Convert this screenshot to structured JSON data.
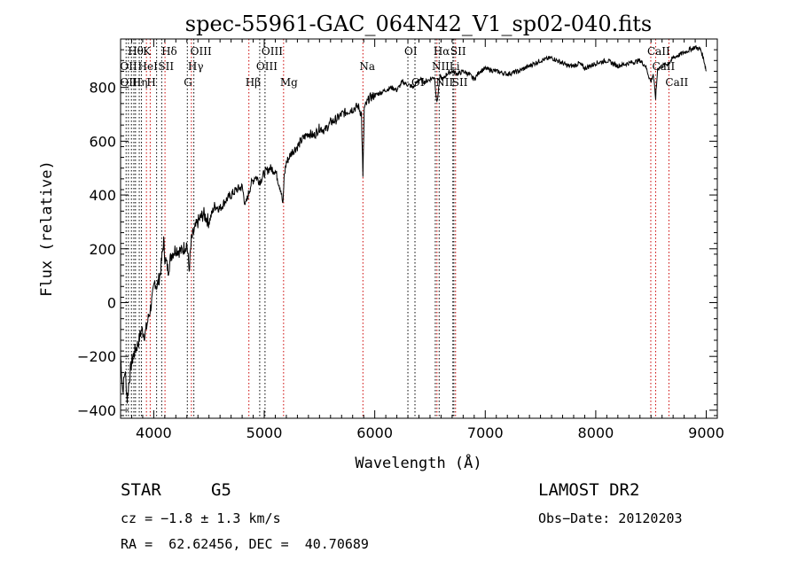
{
  "chart_data": {
    "type": "line",
    "title": "spec-55961-GAC_064N42_V1_sp02-040.fits",
    "xlabel": "Wavelength (Å)",
    "ylabel": "Flux (relative)",
    "xlim": [
      3700,
      9100
    ],
    "ylim": [
      -430,
      980
    ],
    "x_ticks": [
      4000,
      5000,
      6000,
      7000,
      8000,
      9000
    ],
    "x_tick_labels": [
      "4000",
      "5000",
      "6000",
      "7000",
      "8000",
      "9000"
    ],
    "y_ticks": [
      -400,
      -200,
      0,
      200,
      400,
      600,
      800
    ],
    "y_tick_labels": [
      "−400",
      "−200",
      "0",
      "200",
      "400",
      "600",
      "800"
    ],
    "grid": false,
    "series": [
      {
        "line_color": "#000000",
        "x": [
          3700,
          3720,
          3740,
          3760,
          3780,
          3800,
          3830,
          3860,
          3890,
          3920,
          3950,
          3970,
          3990,
          4010,
          4030,
          4060,
          4090,
          4100,
          4130,
          4160,
          4200,
          4250,
          4300,
          4320,
          4340,
          4360,
          4400,
          4450,
          4500,
          4550,
          4600,
          4650,
          4700,
          4750,
          4800,
          4830,
          4861,
          4880,
          4920,
          4960,
          5000,
          5050,
          5100,
          5150,
          5170,
          5180,
          5200,
          5250,
          5300,
          5350,
          5400,
          5450,
          5500,
          5550,
          5600,
          5650,
          5700,
          5750,
          5800,
          5850,
          5880,
          5893,
          5905,
          5950,
          6000,
          6050,
          6100,
          6150,
          6200,
          6250,
          6300,
          6350,
          6400,
          6450,
          6500,
          6540,
          6563,
          6590,
          6620,
          6650,
          6700,
          6750,
          6800,
          6850,
          6900,
          6950,
          7000,
          7100,
          7200,
          7300,
          7400,
          7500,
          7600,
          7650,
          7700,
          7750,
          7800,
          7850,
          7900,
          7950,
          8000,
          8100,
          8200,
          8300,
          8400,
          8450,
          8498,
          8520,
          8542,
          8560,
          8600,
          8662,
          8700,
          8750,
          8800,
          8850,
          8900,
          8950,
          8980,
          8990,
          9000
        ],
        "y": [
          -200,
          -330,
          -250,
          -360,
          -280,
          -220,
          -180,
          -150,
          -100,
          -120,
          -60,
          -20,
          20,
          80,
          60,
          110,
          230,
          170,
          120,
          180,
          200,
          190,
          220,
          120,
          230,
          260,
          300,
          330,
          300,
          360,
          350,
          380,
          400,
          420,
          430,
          360,
          410,
          440,
          470,
          450,
          480,
          500,
          490,
          420,
          360,
          470,
          520,
          560,
          580,
          610,
          630,
          620,
          650,
          640,
          670,
          680,
          700,
          710,
          720,
          730,
          700,
          460,
          720,
          760,
          770,
          780,
          790,
          800,
          790,
          820,
          810,
          800,
          830,
          820,
          830,
          840,
          740,
          840,
          830,
          850,
          860,
          850,
          860,
          850,
          830,
          860,
          870,
          860,
          850,
          860,
          880,
          900,
          910,
          900,
          890,
          880,
          880,
          890,
          870,
          880,
          890,
          900,
          880,
          890,
          900,
          880,
          820,
          850,
          760,
          870,
          880,
          890,
          910,
          920,
          930,
          940,
          950,
          940,
          900,
          880,
          860
        ]
      }
    ],
    "lines": [
      {
        "x": 3750,
        "color": "#000000"
      },
      {
        "x": 3771,
        "color": "#000000"
      },
      {
        "x": 3798,
        "color": "#000000"
      },
      {
        "x": 3820,
        "color": "#000000"
      },
      {
        "x": 3835,
        "color": "#000000"
      },
      {
        "x": 3869,
        "color": "#000000"
      },
      {
        "x": 3889,
        "color": "#000000"
      },
      {
        "x": 3934,
        "color": "#cc0000"
      },
      {
        "x": 3968,
        "color": "#cc0000"
      },
      {
        "x": 4026,
        "color": "#000000"
      },
      {
        "x": 4072,
        "color": "#000000"
      },
      {
        "x": 4102,
        "color": "#cc0000"
      },
      {
        "x": 4304,
        "color": "#000000"
      },
      {
        "x": 4341,
        "color": "#cc0000"
      },
      {
        "x": 4363,
        "color": "#000000"
      },
      {
        "x": 4861,
        "color": "#cc0000"
      },
      {
        "x": 4959,
        "color": "#000000"
      },
      {
        "x": 5007,
        "color": "#000000"
      },
      {
        "x": 5175,
        "color": "#cc0000"
      },
      {
        "x": 5893,
        "color": "#cc0000"
      },
      {
        "x": 6300,
        "color": "#000000"
      },
      {
        "x": 6364,
        "color": "#000000"
      },
      {
        "x": 6548,
        "color": "#000000"
      },
      {
        "x": 6563,
        "color": "#cc0000"
      },
      {
        "x": 6583,
        "color": "#000000"
      },
      {
        "x": 6707,
        "color": "#000000"
      },
      {
        "x": 6716,
        "color": "#000000"
      },
      {
        "x": 6731,
        "color": "#cc0000"
      },
      {
        "x": 8498,
        "color": "#cc0000"
      },
      {
        "x": 8542,
        "color": "#cc0000"
      },
      {
        "x": 8662,
        "color": "#cc0000"
      }
    ],
    "annotations": [
      {
        "text": "Hθ",
        "x": 3798,
        "row": 1
      },
      {
        "text": "K",
        "x": 3934,
        "row": 1
      },
      {
        "text": "Hδ",
        "x": 4102,
        "row": 1
      },
      {
        "text": "OIII",
        "x": 4363,
        "row": 1
      },
      {
        "text": "OIII",
        "x": 5007,
        "row": 1
      },
      {
        "text": "OI",
        "x": 6300,
        "row": 1
      },
      {
        "text": "Hα",
        "x": 6563,
        "row": 1
      },
      {
        "text": "SII",
        "x": 6716,
        "row": 1
      },
      {
        "text": "CaII",
        "x": 8498,
        "row": 1
      },
      {
        "text": "OII",
        "x": 3727,
        "row": 2
      },
      {
        "text": "HeI",
        "x": 3889,
        "row": 2
      },
      {
        "text": "SII",
        "x": 4072,
        "row": 2
      },
      {
        "text": "Hγ",
        "x": 4341,
        "row": 2
      },
      {
        "text": "OIII",
        "x": 4959,
        "row": 2
      },
      {
        "text": "Na",
        "x": 5893,
        "row": 2
      },
      {
        "text": "NII",
        "x": 6548,
        "row": 2
      },
      {
        "text": "Li",
        "x": 6707,
        "row": 2
      },
      {
        "text": "CaII",
        "x": 8542,
        "row": 2
      },
      {
        "text": "OIII",
        "x": 3727,
        "row": 3
      },
      {
        "text": "Hη",
        "x": 3835,
        "row": 3
      },
      {
        "text": "H",
        "x": 3968,
        "row": 3
      },
      {
        "text": "G",
        "x": 4304,
        "row": 3
      },
      {
        "text": "Hβ",
        "x": 4861,
        "row": 3
      },
      {
        "text": "Mg",
        "x": 5175,
        "row": 3
      },
      {
        "text": "OI",
        "x": 6364,
        "row": 3
      },
      {
        "text": "NII",
        "x": 6583,
        "row": 3
      },
      {
        "text": "SII",
        "x": 6731,
        "row": 3
      },
      {
        "text": "CaII",
        "x": 8662,
        "row": 3
      }
    ]
  },
  "info": {
    "object_class": "STAR",
    "subclass": "G5",
    "survey": "LAMOST DR2",
    "redshift": "cz = −1.8 ± 1.3 km/s",
    "obs_date": "Obs−Date: 20120203",
    "coords": "RA =  62.62456, DEC =  40.70689"
  }
}
